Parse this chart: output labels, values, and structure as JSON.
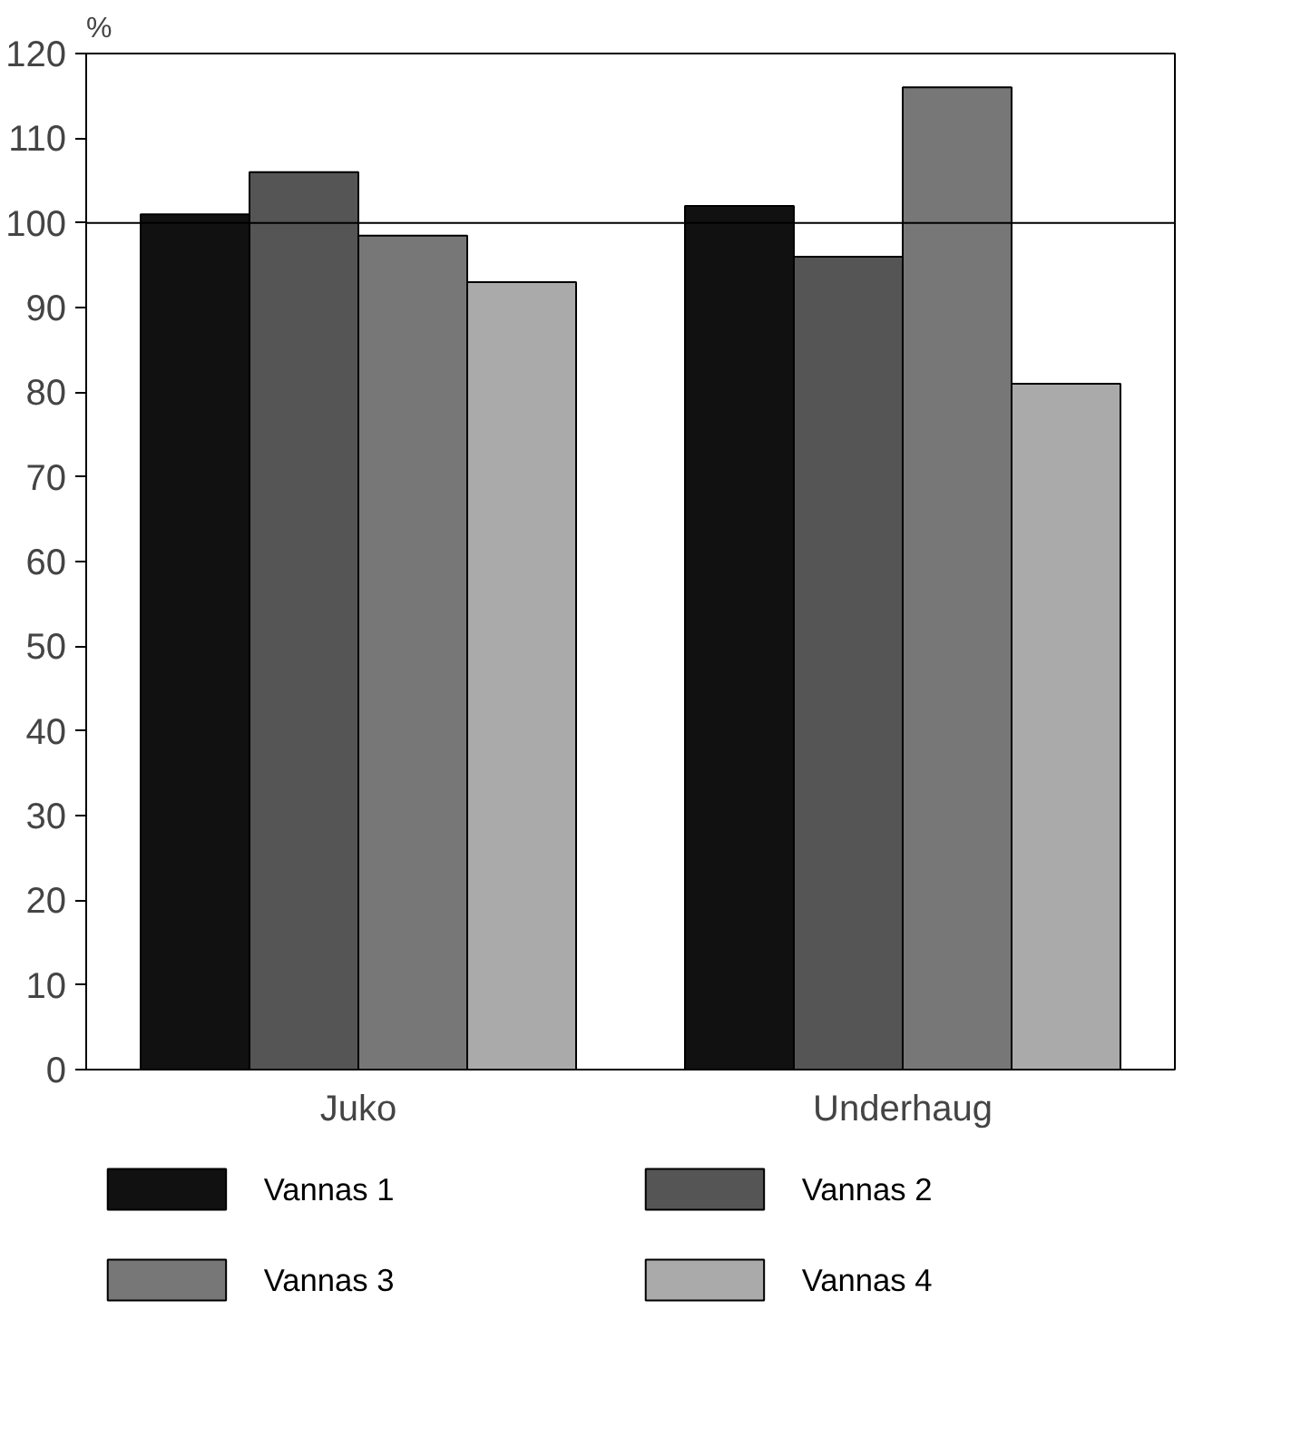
{
  "chart_data": {
    "type": "bar",
    "ylabel": "%",
    "categories": [
      "Juko",
      "Underhaug"
    ],
    "series": [
      {
        "name": "Vannas 1",
        "color": "#111111",
        "values": [
          101,
          102
        ]
      },
      {
        "name": "Vannas 2",
        "color": "#555555",
        "values": [
          106,
          96
        ]
      },
      {
        "name": "Vannas 3",
        "color": "#777777",
        "values": [
          98.5,
          116
        ]
      },
      {
        "name": "Vannas 4",
        "color": "#aaaaaa",
        "values": [
          93,
          81
        ]
      }
    ],
    "ylim": [
      0,
      120
    ],
    "yticks": [
      0,
      10,
      20,
      30,
      40,
      50,
      60,
      70,
      80,
      90,
      100,
      110,
      120
    ],
    "ref_lines": [
      {
        "axis": "y",
        "value": 100
      }
    ],
    "grid": false,
    "legend": "bottom"
  }
}
